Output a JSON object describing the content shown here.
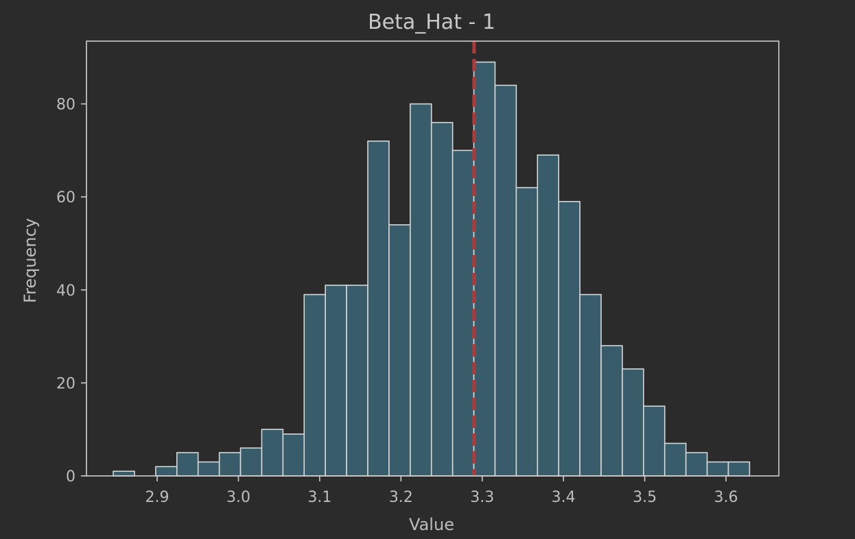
{
  "chart_data": {
    "type": "bar",
    "title": "Beta_Hat - 1",
    "xlabel": "Value",
    "ylabel": "Frequency",
    "bin_width": 0.0261,
    "bin_start": 2.846,
    "values": [
      1,
      0,
      2,
      5,
      3,
      5,
      6,
      10,
      9,
      39,
      41,
      41,
      72,
      54,
      80,
      76,
      70,
      89,
      84,
      62,
      69,
      59,
      39,
      28,
      23,
      15,
      7,
      5,
      3,
      3
    ],
    "xlim": [
      2.813,
      3.665
    ],
    "ylim": [
      0,
      93.5
    ],
    "xticks": [
      "2.9",
      "3.0",
      "3.1",
      "3.2",
      "3.3",
      "3.4",
      "3.5",
      "3.6"
    ],
    "yticks": [
      "0",
      "20",
      "40",
      "60",
      "80"
    ],
    "reference_line": 3.29,
    "grid": false,
    "colors": {
      "background": "#2b2b2b",
      "bar_fill": "#385c6a",
      "bar_edge": "#d9d9d9",
      "axes": "#cfcfcf",
      "reference_line": "#b03a3a"
    }
  }
}
